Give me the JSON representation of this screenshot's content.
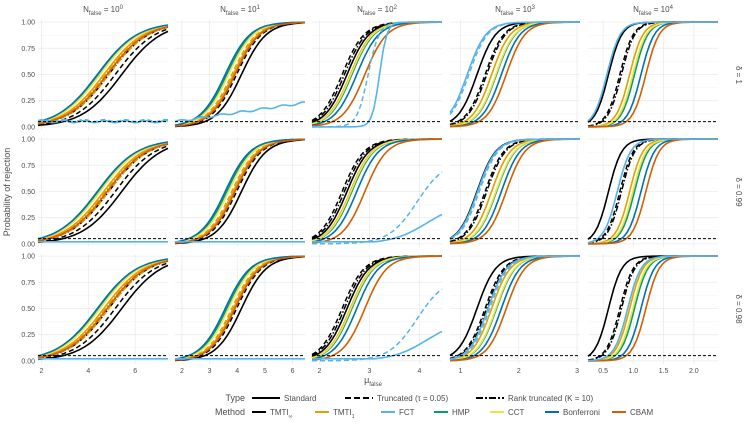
{
  "chart_data": {
    "type": "line",
    "ylabel": "Probability of rejection",
    "xlabel_base": "μ",
    "xlabel_sub": "false",
    "ylim": [
      0,
      1
    ],
    "y_ticks": [
      "0.00",
      "0.25",
      "0.50",
      "0.75",
      "1.00"
    ],
    "y_tick_values": [
      0,
      0.25,
      0.5,
      0.75,
      1.0
    ],
    "reference_line": 0.05,
    "grid": true,
    "columns": [
      {
        "label_base": "N",
        "label_sub": "false",
        "label_eq": " = 10",
        "label_sup": "0",
        "xlim": [
          1.85,
          7.4
        ],
        "ticks": [
          2,
          4,
          6
        ],
        "center": 4.8,
        "scale": 0.85
      },
      {
        "label_base": "N",
        "label_sub": "false",
        "label_eq": " = 10",
        "label_sup": "1",
        "xlim": [
          1.75,
          6.45
        ],
        "ticks": [
          2,
          3,
          4,
          5,
          6
        ],
        "center": 3.8,
        "scale": 0.45
      },
      {
        "label_base": "N",
        "label_sub": "false",
        "label_eq": " = 10",
        "label_sup": "2",
        "xlim": [
          1.85,
          4.45
        ],
        "ticks": [
          2,
          3,
          4
        ],
        "center": 2.55,
        "scale": 0.22
      },
      {
        "label_base": "N",
        "label_sub": "false",
        "label_eq": " = 10",
        "label_sup": "3",
        "xlim": [
          0.82,
          3.05
        ],
        "ticks": [
          1,
          2,
          3
        ],
        "center": 1.45,
        "scale": 0.16
      },
      {
        "label_base": "N",
        "label_sub": "false",
        "label_eq": " = 10",
        "label_sup": "4",
        "xlim": [
          0.25,
          2.4
        ],
        "ticks": [
          0.5,
          1.0,
          1.5,
          2.0
        ],
        "tick_labels": [
          "0.5",
          "1.0",
          "1.5",
          "2.0"
        ],
        "center": 0.75,
        "scale": 0.11
      }
    ],
    "rows": [
      {
        "label": "δ = 1"
      },
      {
        "label": "δ = 0.99"
      },
      {
        "label": "δ = 0.98"
      }
    ],
    "legend": {
      "placement": "bottom",
      "type_title": "Type",
      "types": [
        {
          "label": "Standard",
          "dash": "solid"
        },
        {
          "label": "Truncated (τ = 0.05)",
          "dash": "dashed"
        },
        {
          "label": "Rank truncated (K = 10)",
          "dash": "dotdash"
        }
      ],
      "method_title": "Method",
      "methods": [
        {
          "label_base": "TMTI",
          "label_sub": "∞",
          "color": "#000000"
        },
        {
          "label_base": "TMTI",
          "label_sub": "1",
          "color": "#E69F00"
        },
        {
          "label_base": "FCT",
          "label_sub": "",
          "color": "#56B4E9"
        },
        {
          "label_base": "HMP",
          "label_sub": "",
          "color": "#009E73"
        },
        {
          "label_base": "CCT",
          "label_sub": "",
          "color": "#F0E442"
        },
        {
          "label_base": "Bonferroni",
          "label_sub": "",
          "color": "#0072B2"
        },
        {
          "label_base": "CBAM",
          "label_sub": "",
          "color": "#D55E00"
        }
      ]
    },
    "curve_offsets": [
      [
        {
          "method": "TMTI∞",
          "type": "Standard",
          "shift": 0.45
        },
        {
          "method": "TMTI∞",
          "type": "Truncated (τ = 0.05)",
          "shift": 0.25
        },
        {
          "method": "TMTI∞",
          "type": "Rank truncated (K = 10)",
          "shift": 0.05
        },
        {
          "method": "TMTI1",
          "type": "Standard",
          "shift": -0.1
        },
        {
          "method": "TMTI1",
          "type": "Truncated (τ = 0.05)",
          "shift": 0.05
        },
        {
          "method": "TMTI1",
          "type": "Rank truncated (K = 10)",
          "shift": -0.05
        },
        {
          "method": "HMP",
          "type": "Standard",
          "shift": -0.25
        },
        {
          "method": "CCT",
          "type": "Standard",
          "shift": -0.22
        },
        {
          "method": "Bonferroni",
          "type": "Standard",
          "shift": -0.3
        },
        {
          "method": "CBAM",
          "type": "Standard",
          "shift": 0.0
        },
        {
          "method": "FCT",
          "type": "Standard",
          "shift": 99,
          "flat": 0.05
        },
        {
          "method": "FCT",
          "type": "Truncated (τ = 0.05)",
          "shift": 99,
          "flat": 0.06
        }
      ],
      [
        {
          "method": "TMTI∞",
          "type": "Standard",
          "shift": 0.3
        },
        {
          "method": "TMTI∞",
          "type": "Truncated (τ = 0.05)",
          "shift": 0.15
        },
        {
          "method": "TMTI∞",
          "type": "Rank truncated (K = 10)",
          "shift": 0.05
        },
        {
          "method": "TMTI1",
          "type": "Standard",
          "shift": 0.05
        },
        {
          "method": "TMTI1",
          "type": "Truncated (τ = 0.05)",
          "shift": 0.0
        },
        {
          "method": "HMP",
          "type": "Standard",
          "shift": -0.15
        },
        {
          "method": "CCT",
          "type": "Standard",
          "shift": -0.1
        },
        {
          "method": "Bonferroni",
          "type": "Standard",
          "shift": -0.2
        },
        {
          "method": "CBAM",
          "type": "Standard",
          "shift": 0.1
        },
        {
          "method": "FCT",
          "type": "Standard",
          "shift": 99,
          "flat": 0.05,
          "rise": 0.18
        }
      ],
      [
        {
          "method": "TMTI∞",
          "type": "Standard",
          "shift": 0.0
        },
        {
          "method": "TMTI∞",
          "type": "Truncated (τ = 0.05)",
          "shift": -0.15
        },
        {
          "method": "TMTI∞",
          "type": "Rank truncated (K = 10)",
          "shift": -0.08
        },
        {
          "method": "TMTI1",
          "type": "Standard",
          "shift": 0.1
        },
        {
          "method": "HMP",
          "type": "Standard",
          "shift": 0.15
        },
        {
          "method": "CCT",
          "type": "Standard",
          "shift": 0.12
        },
        {
          "method": "Bonferroni",
          "type": "Standard",
          "shift": 0.3
        },
        {
          "method": "CBAM",
          "type": "Standard",
          "shift": 0.55
        },
        {
          "method": "FCT",
          "type": "Standard",
          "shift": 1.0,
          "slope": 3
        },
        {
          "method": "FCT",
          "type": "Truncated (τ = 0.05)",
          "shift": 0.65,
          "slope": 2
        }
      ],
      [
        {
          "method": "TMTI∞",
          "type": "Standard",
          "shift": -0.3
        },
        {
          "method": "TMTI∞",
          "type": "Truncated (τ = 0.05)",
          "shift": -0.05
        },
        {
          "method": "TMTI∞",
          "type": "Rank truncated (K = 10)",
          "shift": 0.0
        },
        {
          "method": "TMTI1",
          "type": "Standard",
          "shift": 0.15
        },
        {
          "method": "HMP",
          "type": "Standard",
          "shift": 0.3
        },
        {
          "method": "CCT",
          "type": "Standard",
          "shift": 0.28
        },
        {
          "method": "Bonferroni",
          "type": "Standard",
          "shift": 0.45
        },
        {
          "method": "CBAM",
          "type": "Standard",
          "shift": 0.6
        },
        {
          "method": "FCT",
          "type": "Standard",
          "shift": -0.6
        },
        {
          "method": "FCT",
          "type": "Truncated (τ = 0.05)",
          "shift": -0.55
        }
      ],
      [
        {
          "method": "TMTI∞",
          "type": "Standard",
          "shift": -0.3
        },
        {
          "method": "TMTI∞",
          "type": "Truncated (τ = 0.05)",
          "shift": 0.05
        },
        {
          "method": "TMTI∞",
          "type": "Rank truncated (K = 10)",
          "shift": 0.1
        },
        {
          "method": "TMTI1",
          "type": "Standard",
          "shift": 0.35
        },
        {
          "method": "HMP",
          "type": "Standard",
          "shift": 0.5
        },
        {
          "method": "CCT",
          "type": "Standard",
          "shift": 0.45
        },
        {
          "method": "Bonferroni",
          "type": "Standard",
          "shift": 0.7
        },
        {
          "method": "CBAM",
          "type": "Standard",
          "shift": 0.85
        },
        {
          "method": "FCT",
          "type": "Standard",
          "shift": -0.35
        }
      ]
    ]
  }
}
